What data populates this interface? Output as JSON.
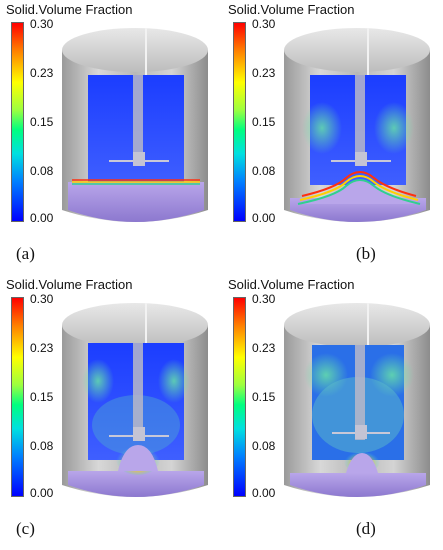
{
  "colorbar": {
    "title": "Solid.Volume Fraction",
    "ticks": [
      "0.30",
      "0.23",
      "0.15",
      "0.08",
      "0.00"
    ]
  },
  "panels": [
    {
      "label": "(a)"
    },
    {
      "label": "(b)"
    },
    {
      "label": "(c)"
    },
    {
      "label": "(d)"
    }
  ]
}
